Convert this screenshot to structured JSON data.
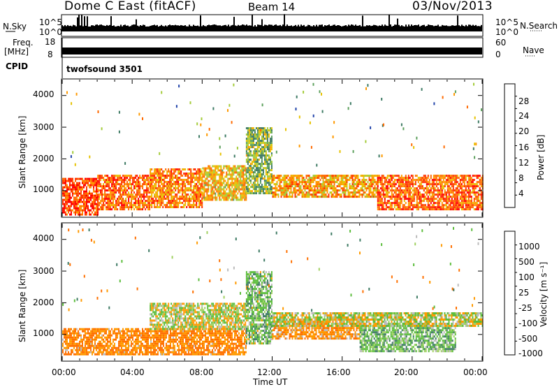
{
  "header": {
    "radar": "Dome C East (fitACF)",
    "beam": "Beam 14",
    "date": "03/Nov/2013"
  },
  "strip": {
    "nsky_label": "N.Sky",
    "nsky_ticks": [
      "10^5",
      "10^0"
    ],
    "nsearch_label": "N.Search",
    "nsearch_ticks": [
      "10^5",
      "10^0"
    ],
    "freq_label": "Freq.",
    "freq_unit": "[MHz]",
    "freq_ticks": [
      "18",
      "8"
    ],
    "nave_label": "Nave",
    "nave_ticks": [
      "60",
      "0"
    ],
    "cpid_label": "CPID",
    "cpid_value": "twofsound 3501"
  },
  "axes": {
    "ylabel": "Slant Range [km]",
    "xlabel": "Time UT",
    "yticks": [
      "4000",
      "3000",
      "2000",
      "1000"
    ],
    "xticks": [
      "00:00",
      "04:00",
      "08:00",
      "12:00",
      "16:00",
      "20:00",
      "00:00"
    ]
  },
  "power_scale": {
    "label": "Power [dB]",
    "ticks": [
      "28",
      "24",
      "20",
      "16",
      "12",
      "8",
      "4"
    ],
    "colors": [
      "#ff0000",
      "#ff3300",
      "#ff6a00",
      "#ff9900",
      "#e6c200",
      "#a4cc3a",
      "#5ca05c",
      "#3d7a63",
      "#2244aa",
      "#0000ff"
    ]
  },
  "velocity_scale": {
    "label": "Velocity [m s⁻¹]",
    "ticks": [
      "1000",
      "500",
      "100",
      "25",
      "-25",
      "-100",
      "-500",
      "-1000"
    ],
    "colors": [
      "#2040b0",
      "#3d7a63",
      "#5cbd3c",
      "#a0d060",
      "#bbbbbb",
      "#ff9a00",
      "#ff7000",
      "#ff4000",
      "#ff0000"
    ]
  },
  "chart_data": [
    {
      "type": "heatmap",
      "title": "Power",
      "xlabel": "Time UT",
      "ylabel": "Slant Range [km]",
      "xlim": [
        0,
        24
      ],
      "ylim": [
        180,
        4500
      ],
      "colorbar_label": "Power [dB]",
      "colorbar_range": [
        0,
        30
      ],
      "bands": [
        {
          "t0": 0,
          "t1": 2,
          "r0": 250,
          "r1": 1400,
          "value": 26
        },
        {
          "t0": 2,
          "t1": 5,
          "r0": 400,
          "r1": 1500,
          "value": 24
        },
        {
          "t0": 5,
          "t1": 8,
          "r0": 500,
          "r1": 1700,
          "value": 22
        },
        {
          "t0": 8,
          "t1": 10.5,
          "r0": 700,
          "r1": 1800,
          "value": 18
        },
        {
          "t0": 10.5,
          "t1": 12,
          "r0": 900,
          "r1": 3000,
          "value": 12
        },
        {
          "t0": 12,
          "t1": 18,
          "r0": 800,
          "r1": 1500,
          "value": 20
        },
        {
          "t0": 18,
          "t1": 24,
          "r0": 400,
          "r1": 1500,
          "value": 24
        }
      ]
    },
    {
      "type": "heatmap",
      "title": "Velocity",
      "xlabel": "Time UT",
      "ylabel": "Slant Range [km]",
      "xlim": [
        0,
        24
      ],
      "ylim": [
        180,
        4500
      ],
      "colorbar_label": "Velocity [m s⁻¹]",
      "colorbar_range": [
        -1000,
        1000
      ],
      "bands": [
        {
          "t0": 0,
          "t1": 10.5,
          "r0": 400,
          "r1": 1200,
          "value": -100
        },
        {
          "t0": 5,
          "t1": 10.5,
          "r0": 1200,
          "r1": 2000,
          "value": 0
        },
        {
          "t0": 10.5,
          "t1": 12,
          "r0": 700,
          "r1": 3000,
          "value": 50
        },
        {
          "t0": 12,
          "t1": 17,
          "r0": 900,
          "r1": 1500,
          "value": -80
        },
        {
          "t0": 17,
          "t1": 22.5,
          "r0": 500,
          "r1": 1300,
          "value": 60
        },
        {
          "t0": 12,
          "t1": 24,
          "r0": 1300,
          "r1": 1700,
          "value": 0
        }
      ]
    }
  ]
}
